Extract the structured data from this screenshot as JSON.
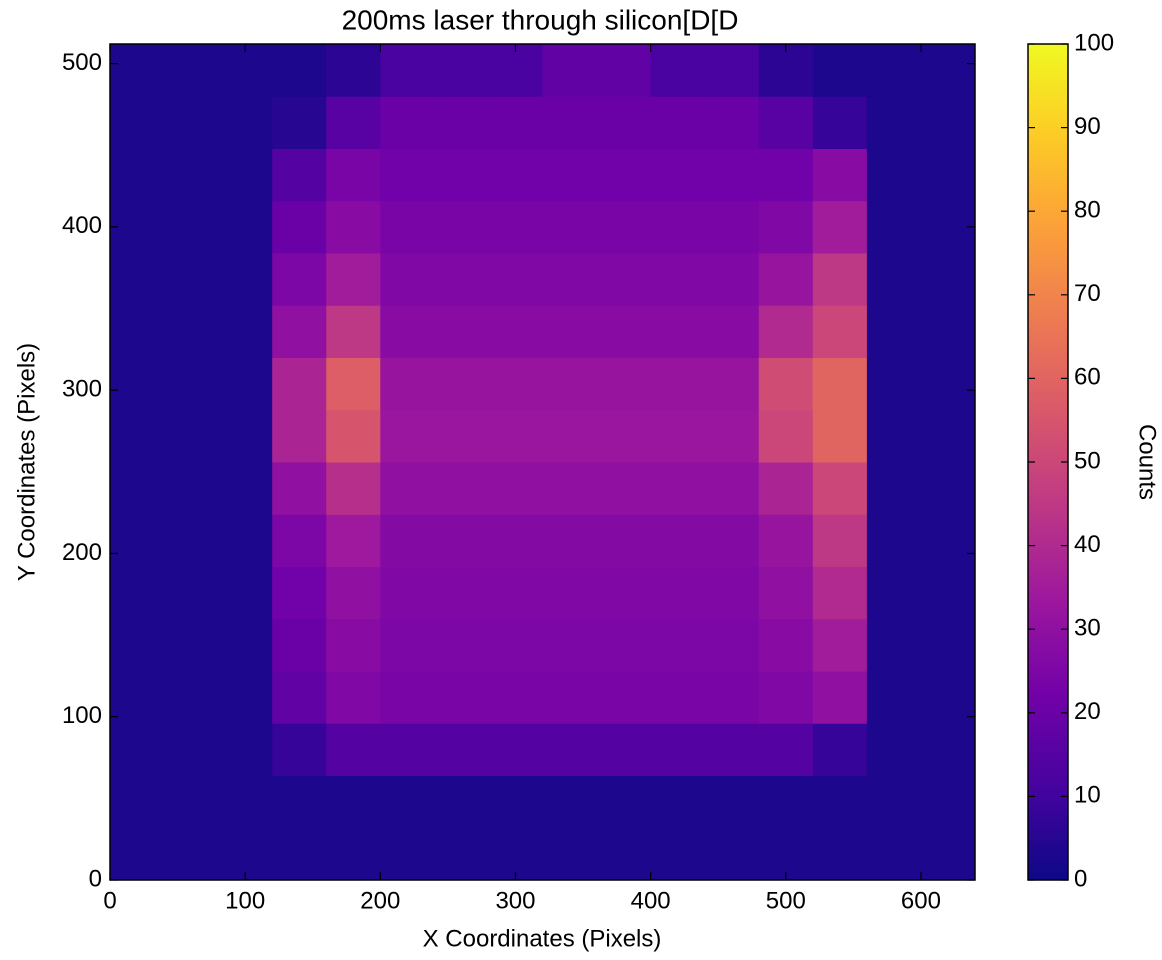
{
  "chart_data": {
    "type": "heatmap",
    "title": "200ms laser through silicon[D[D",
    "xlabel": "X Coordinates (Pixels)",
    "ylabel": "Y Coordinates (Pixels)",
    "xlim": [
      0,
      640
    ],
    "ylim": [
      0,
      512
    ],
    "xticks": [
      0,
      100,
      200,
      300,
      400,
      500,
      600
    ],
    "yticks": [
      0,
      100,
      200,
      300,
      400,
      500
    ],
    "xbins": [
      0,
      40,
      80,
      120,
      160,
      200,
      240,
      280,
      320,
      360,
      400,
      440,
      480,
      520,
      560,
      600,
      640
    ],
    "ybins": [
      0,
      32,
      64,
      96,
      128,
      160,
      192,
      224,
      256,
      288,
      320,
      352,
      384,
      416,
      448,
      480,
      512
    ],
    "values": [
      [
        3,
        3,
        3,
        3,
        3,
        3,
        3,
        3,
        3,
        3,
        3,
        3,
        3,
        3,
        3,
        3
      ],
      [
        3,
        3,
        3,
        3,
        3,
        3,
        3,
        3,
        3,
        3,
        3,
        3,
        3,
        3,
        3,
        3
      ],
      [
        3,
        3,
        3,
        8,
        15,
        15,
        15,
        15,
        15,
        15,
        15,
        15,
        15,
        8,
        3,
        3
      ],
      [
        3,
        3,
        3,
        18,
        26,
        24,
        24,
        24,
        24,
        24,
        24,
        24,
        26,
        30,
        3,
        3
      ],
      [
        3,
        3,
        3,
        20,
        28,
        25,
        25,
        25,
        25,
        25,
        25,
        25,
        28,
        35,
        3,
        3
      ],
      [
        3,
        3,
        3,
        22,
        30,
        26,
        26,
        26,
        26,
        26,
        26,
        26,
        30,
        40,
        3,
        3
      ],
      [
        3,
        3,
        3,
        25,
        34,
        27,
        27,
        27,
        27,
        27,
        27,
        27,
        32,
        45,
        3,
        3
      ],
      [
        3,
        3,
        3,
        30,
        42,
        30,
        30,
        30,
        30,
        30,
        30,
        30,
        38,
        50,
        3,
        3
      ],
      [
        3,
        3,
        3,
        38,
        55,
        33,
        33,
        33,
        33,
        33,
        33,
        33,
        50,
        60,
        3,
        3
      ],
      [
        3,
        3,
        3,
        38,
        58,
        32,
        32,
        32,
        32,
        32,
        32,
        32,
        52,
        60,
        3,
        3
      ],
      [
        3,
        3,
        3,
        30,
        45,
        28,
        28,
        28,
        28,
        28,
        28,
        28,
        40,
        50,
        3,
        3
      ],
      [
        3,
        3,
        3,
        25,
        35,
        26,
        26,
        26,
        26,
        26,
        26,
        26,
        32,
        45,
        3,
        3
      ],
      [
        3,
        3,
        3,
        20,
        28,
        24,
        24,
        24,
        24,
        24,
        24,
        24,
        26,
        35,
        3,
        3
      ],
      [
        3,
        3,
        3,
        15,
        24,
        22,
        22,
        22,
        22,
        22,
        22,
        22,
        22,
        28,
        3,
        3
      ],
      [
        3,
        3,
        3,
        5,
        16,
        20,
        20,
        20,
        20,
        20,
        20,
        20,
        16,
        8,
        3,
        3
      ],
      [
        3,
        3,
        3,
        3,
        6,
        12,
        12,
        12,
        18,
        18,
        12,
        12,
        6,
        3,
        3,
        3
      ]
    ],
    "colormap": [
      "#0d0887",
      "#46039f",
      "#7201a8",
      "#9c179e",
      "#bd3786",
      "#d8576b",
      "#ed7953",
      "#fb9f3a",
      "#fdca26",
      "#f0f921"
    ],
    "clim": [
      0,
      100
    ],
    "cticks": [
      0,
      10,
      20,
      30,
      40,
      50,
      60,
      70,
      80,
      90,
      100
    ],
    "colorbar_label": "Counts"
  }
}
